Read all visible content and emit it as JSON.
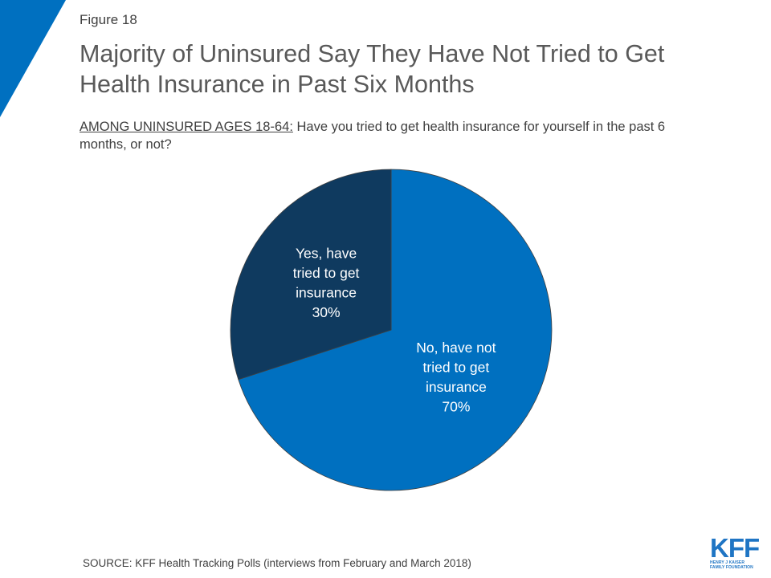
{
  "figure_label": "Figure 18",
  "title": "Majority of Uninsured Say They Have Not Tried to Get Health Insurance in Past Six Months",
  "subtitle_prefix": "AMONG UNINSURED AGES 18-64:",
  "subtitle_text": " Have you tried to get health insurance for yourself in the past 6 months, or not?",
  "source": "SOURCE: KFF Health Tracking Polls (interviews from February and March 2018)",
  "logo": {
    "mark": "KFF",
    "line1": "HENRY J KAISER",
    "line2": "FAMILY FOUNDATION"
  },
  "colors": {
    "accent": "#0070c0",
    "dark": "#0f3a5f",
    "corner": "#0070c0"
  },
  "chart_data": {
    "type": "pie",
    "slices": [
      {
        "name": "Yes, have tried to get insurance",
        "label_lines": [
          "Yes, have",
          "tried to get",
          "insurance"
        ],
        "value": 30,
        "value_label": "30%",
        "color": "#0f3a5f"
      },
      {
        "name": "No, have not tried to get insurance",
        "label_lines": [
          "No, have not",
          "tried to get",
          "insurance"
        ],
        "value": 70,
        "value_label": "70%",
        "color": "#0070c0"
      }
    ]
  }
}
